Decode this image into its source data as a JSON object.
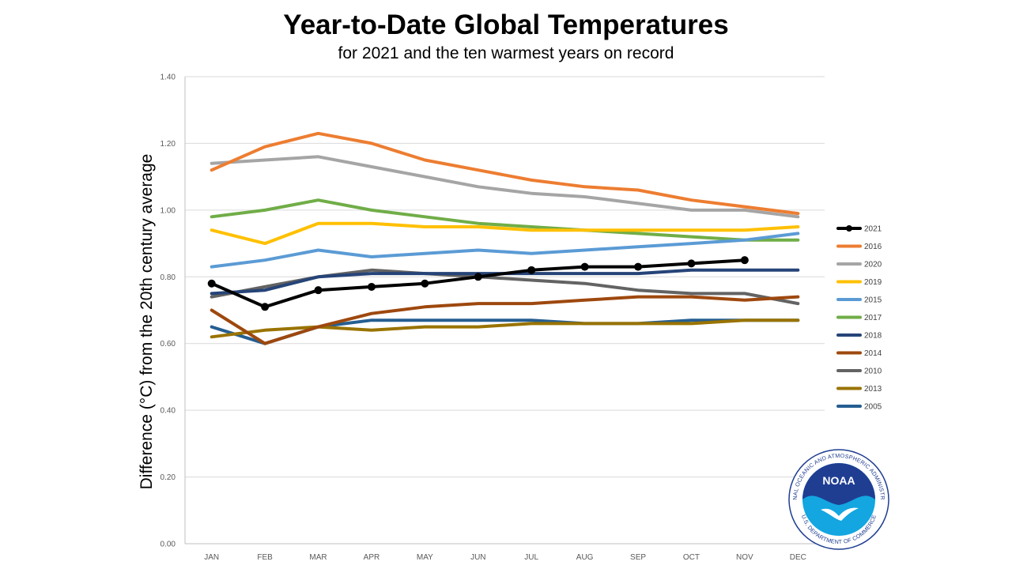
{
  "chart_data": {
    "type": "line",
    "title": "Year-to-Date Global Temperatures",
    "subtitle": "for 2021 and the ten warmest years on record",
    "xlabel": "",
    "ylabel": "Difference (°C) from the 20th century average",
    "categories": [
      "JAN",
      "FEB",
      "MAR",
      "APR",
      "MAY",
      "JUN",
      "JUL",
      "AUG",
      "SEP",
      "OCT",
      "NOV",
      "DEC"
    ],
    "ylim": [
      0,
      1.4
    ],
    "yticks": [
      "0.00",
      "0.20",
      "0.40",
      "0.60",
      "0.80",
      "1.00",
      "1.20",
      "1.40"
    ],
    "grid": true,
    "legend_position": "right",
    "series": [
      {
        "name": "2021",
        "color": "#000000",
        "markers": true,
        "values": [
          0.78,
          0.71,
          0.76,
          0.77,
          0.78,
          0.8,
          0.82,
          0.83,
          0.83,
          0.84,
          0.85,
          null
        ]
      },
      {
        "name": "2016",
        "color": "#ED7D31",
        "markers": false,
        "values": [
          1.12,
          1.19,
          1.23,
          1.2,
          1.15,
          1.12,
          1.09,
          1.07,
          1.06,
          1.03,
          1.01,
          0.99
        ]
      },
      {
        "name": "2020",
        "color": "#A5A5A5",
        "markers": false,
        "values": [
          1.14,
          1.15,
          1.16,
          1.13,
          1.1,
          1.07,
          1.05,
          1.04,
          1.02,
          1.0,
          1.0,
          0.98
        ]
      },
      {
        "name": "2019",
        "color": "#FFC000",
        "markers": false,
        "values": [
          0.94,
          0.9,
          0.96,
          0.96,
          0.95,
          0.95,
          0.94,
          0.94,
          0.94,
          0.94,
          0.94,
          0.95
        ]
      },
      {
        "name": "2015",
        "color": "#5B9BD5",
        "markers": false,
        "values": [
          0.83,
          0.85,
          0.88,
          0.86,
          0.87,
          0.88,
          0.87,
          0.88,
          0.89,
          0.9,
          0.91,
          0.93
        ]
      },
      {
        "name": "2017",
        "color": "#70AD47",
        "markers": false,
        "values": [
          0.98,
          1.0,
          1.03,
          1.0,
          0.98,
          0.96,
          0.95,
          0.94,
          0.93,
          0.92,
          0.91,
          0.91
        ]
      },
      {
        "name": "2018",
        "color": "#264478",
        "markers": false,
        "values": [
          0.75,
          0.76,
          0.8,
          0.81,
          0.81,
          0.81,
          0.81,
          0.81,
          0.81,
          0.82,
          0.82,
          0.82
        ]
      },
      {
        "name": "2014",
        "color": "#9E480E",
        "markers": false,
        "values": [
          0.7,
          0.6,
          0.65,
          0.69,
          0.71,
          0.72,
          0.72,
          0.73,
          0.74,
          0.74,
          0.73,
          0.74
        ]
      },
      {
        "name": "2010",
        "color": "#636363",
        "markers": false,
        "values": [
          0.74,
          0.77,
          0.8,
          0.82,
          0.81,
          0.8,
          0.79,
          0.78,
          0.76,
          0.75,
          0.75,
          0.72
        ]
      },
      {
        "name": "2013",
        "color": "#997300",
        "markers": false,
        "values": [
          0.62,
          0.64,
          0.65,
          0.64,
          0.65,
          0.65,
          0.66,
          0.66,
          0.66,
          0.66,
          0.67,
          0.67
        ]
      },
      {
        "name": "2005",
        "color": "#255E91",
        "markers": false,
        "values": [
          0.65,
          0.6,
          0.65,
          0.67,
          0.67,
          0.67,
          0.67,
          0.66,
          0.66,
          0.67,
          0.67,
          0.67
        ]
      }
    ]
  },
  "logo": {
    "ring_text": "NATIONAL OCEANIC AND ATMOSPHERIC ADMINISTRATION",
    "bottom_text": "U.S. DEPARTMENT OF COMMERCE",
    "center_text": "NOAA",
    "colors": {
      "dark_blue": "#1F3E92",
      "light_blue": "#13A6E0"
    }
  }
}
